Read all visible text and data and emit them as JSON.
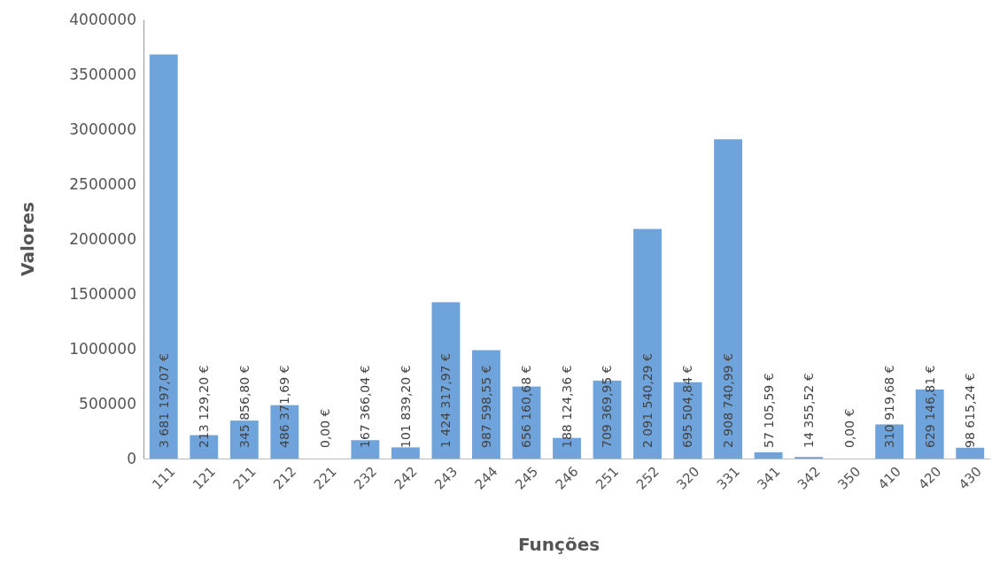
{
  "chart_data": {
    "type": "bar",
    "xlabel": "Funções",
    "ylabel": "Valores",
    "categories": [
      "111",
      "121",
      "211",
      "212",
      "221",
      "232",
      "242",
      "243",
      "244",
      "245",
      "246",
      "251",
      "252",
      "320",
      "331",
      "341",
      "342",
      "350",
      "410",
      "420",
      "430"
    ],
    "values": [
      3681197.07,
      213129.2,
      345856.8,
      486371.69,
      0,
      167366.04,
      101839.2,
      1424317.97,
      987598.55,
      656160.68,
      188124.36,
      709369.95,
      2091540.29,
      695504.84,
      2908740.99,
      57105.59,
      14355.52,
      0,
      310919.68,
      629146.81,
      98615.24
    ],
    "value_labels": [
      "3 681 197,07 €",
      "213 129,20 €",
      "345 856,80 €",
      "486 371,69 €",
      "0,00 €",
      "167 366,04 €",
      "101 839,20 €",
      "1 424 317,97 €",
      "987 598,55 €",
      "656 160,68 €",
      "188 124,36 €",
      "709 369,95 €",
      "2 091 540,29 €",
      "695 504,84 €",
      "2 908 740,99 €",
      "57 105,59 €",
      "14 355,52 €",
      "0,00 €",
      "310 919,68 €",
      "629 146,81 €",
      "98 615,24 €"
    ],
    "color": "#6fa3db",
    "ylim": [
      0,
      4000000
    ],
    "yticks": [
      0,
      500000,
      1000000,
      1500000,
      2000000,
      2500000,
      3000000,
      3500000,
      4000000
    ],
    "grid": false
  }
}
